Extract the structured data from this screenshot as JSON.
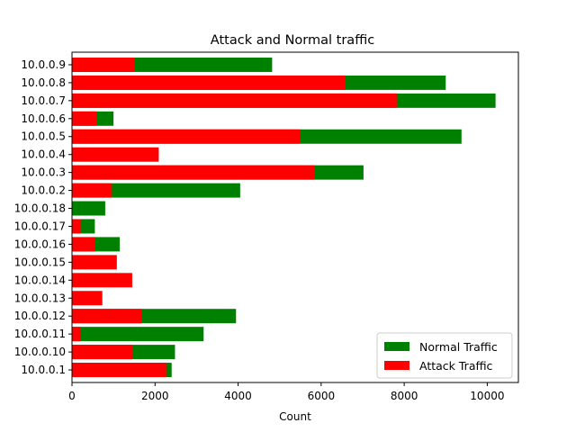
{
  "chart_data": {
    "type": "bar",
    "orientation": "horizontal",
    "stacked_overlay": true,
    "title": "Attack and Normal traffic",
    "xlabel": "Count",
    "ylabel": "",
    "xlim": [
      0,
      10750
    ],
    "xticks": [
      0,
      2000,
      4000,
      6000,
      8000,
      10000
    ],
    "categories": [
      "10.0.0.1",
      "10.0.0.10",
      "10.0.0.11",
      "10.0.0.12",
      "10.0.0.13",
      "10.0.0.14",
      "10.0.0.15",
      "10.0.0.16",
      "10.0.0.17",
      "10.0.0.18",
      "10.0.0.2",
      "10.0.0.3",
      "10.0.0.4",
      "10.0.0.5",
      "10.0.0.6",
      "10.0.0.7",
      "10.0.0.8",
      "10.0.0.9"
    ],
    "series": [
      {
        "name": "Normal Traffic",
        "color": "#008000",
        "values": [
          2400,
          2480,
          3170,
          3950,
          0,
          0,
          0,
          1150,
          550,
          800,
          4050,
          7020,
          0,
          9380,
          1000,
          10200,
          9000,
          4820
        ]
      },
      {
        "name": "Attack Traffic",
        "color": "#ff0000",
        "values": [
          2270,
          1450,
          200,
          1680,
          730,
          1450,
          1080,
          560,
          220,
          0,
          960,
          5850,
          2090,
          5500,
          590,
          7820,
          6580,
          1510
        ]
      }
    ],
    "legend": "lower right",
    "grid": false
  }
}
